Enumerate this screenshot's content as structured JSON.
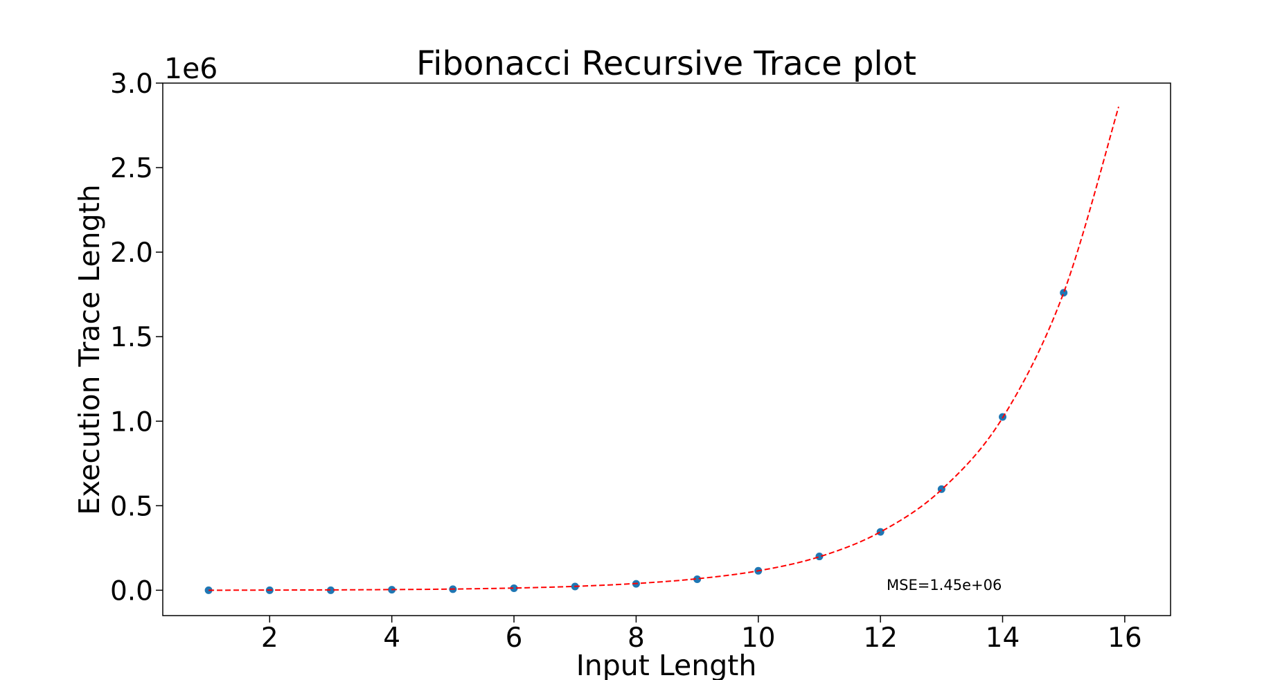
{
  "chart_data": {
    "type": "scatter",
    "title": "Fibonacci Recursive Trace plot",
    "xlabel": "Input Length",
    "ylabel": "Execution Trace Length",
    "y_scale_label": "1e6",
    "annotation": "MSE=1.45e+06",
    "xlim": [
      0.25,
      16.75
    ],
    "ylim": [
      -0.15,
      3.0
    ],
    "y_unit_multiplier": 1000000,
    "xticks": [
      2,
      4,
      6,
      8,
      10,
      12,
      14,
      16
    ],
    "xtick_labels": [
      "2",
      "4",
      "6",
      "8",
      "10",
      "12",
      "14",
      "16"
    ],
    "yticks": [
      0.0,
      0.5,
      1.0,
      1.5,
      2.0,
      2.5,
      3.0
    ],
    "ytick_labels": [
      "0.0",
      "0.5",
      "1.0",
      "1.5",
      "2.0",
      "2.5",
      "3.0"
    ],
    "grid": false,
    "series": [
      {
        "kind": "points",
        "color": "#1f77b4",
        "x": [
          1,
          2,
          3,
          4,
          5,
          6,
          7,
          8,
          9,
          10,
          11,
          12,
          13,
          14,
          15
        ],
        "y": [
          0.0,
          0.0,
          0.0,
          0.003,
          0.006,
          0.012,
          0.022,
          0.038,
          0.065,
          0.115,
          0.2,
          0.345,
          0.598,
          1.025,
          1.76
        ]
      },
      {
        "kind": "fit",
        "color": "#ff0000",
        "style": "dashed",
        "x": [
          1,
          2,
          3,
          4,
          5,
          6,
          7,
          8,
          9,
          10,
          11,
          12,
          13,
          14,
          15,
          15.9
        ],
        "y": [
          0.0,
          0.001,
          0.002,
          0.004,
          0.007,
          0.013,
          0.023,
          0.04,
          0.068,
          0.115,
          0.198,
          0.345,
          0.595,
          1.02,
          1.76,
          2.86
        ]
      }
    ]
  }
}
